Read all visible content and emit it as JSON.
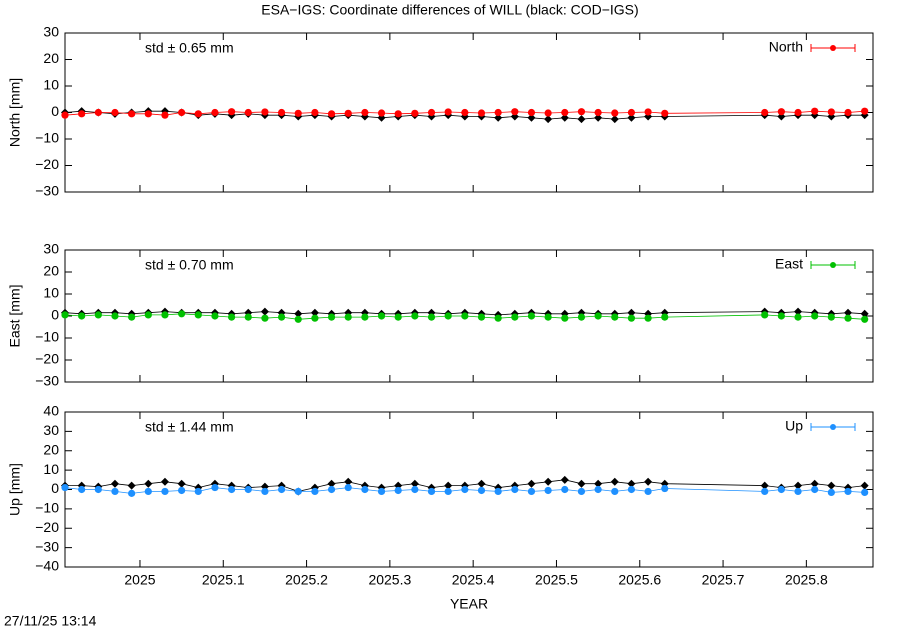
{
  "title": "ESA−IGS: Coordinate differences of WILL (black: COD−IGS)",
  "footer": "27/11/25 13:14",
  "chart_data": [
    {
      "type": "line",
      "ylabel": "North [mm]",
      "annotation": "std ± 0.65 mm",
      "annotation_color": "#ff0000",
      "legend": "upper right",
      "xlim": [
        2024.91,
        2025.88
      ],
      "xticks": [
        2025,
        2025.1,
        2025.2,
        2025.3,
        2025.4,
        2025.5,
        2025.6,
        2025.7,
        2025.8
      ],
      "ylim": [
        -30,
        30
      ],
      "yticks": [
        {
          "value": -30,
          "label": "−30"
        },
        {
          "value": -20,
          "label": "−20"
        },
        {
          "value": -10,
          "label": "−10"
        },
        0,
        10,
        20,
        30
      ],
      "x": [
        2024.91,
        2024.93,
        2024.95,
        2024.97,
        2024.99,
        2025.01,
        2025.03,
        2025.05,
        2025.07,
        2025.09,
        2025.11,
        2025.13,
        2025.15,
        2025.17,
        2025.19,
        2025.21,
        2025.23,
        2025.25,
        2025.27,
        2025.29,
        2025.31,
        2025.33,
        2025.35,
        2025.37,
        2025.39,
        2025.41,
        2025.43,
        2025.45,
        2025.47,
        2025.49,
        2025.51,
        2025.53,
        2025.55,
        2025.57,
        2025.59,
        2025.61,
        2025.63,
        2025.75,
        2025.77,
        2025.79,
        2025.81,
        2025.83,
        2025.85,
        2025.87
      ],
      "series": [
        {
          "color": "#000000",
          "marker": "diamond",
          "values": [
            0,
            0.5,
            0,
            -0.5,
            0,
            0.5,
            0.5,
            0,
            -1,
            -0.5,
            -1,
            -0.5,
            -1,
            -1,
            -1.5,
            -1,
            -1.5,
            -1,
            -1.5,
            -2,
            -1.5,
            -1,
            -1.5,
            -1,
            -1.5,
            -1.5,
            -2,
            -1.5,
            -2,
            -2.5,
            -2,
            -2.5,
            -2,
            -2.5,
            -2,
            -1.5,
            -1.5,
            -1,
            -1.5,
            -1,
            -1,
            -1.5,
            -1,
            -1
          ]
        },
        {
          "name": "North",
          "color": "#ff0000",
          "marker": "circle",
          "values": [
            -1,
            -0.5,
            0,
            0,
            -0.5,
            -0.5,
            -1,
            0,
            -0.5,
            0,
            0.3,
            0,
            0.2,
            0,
            -0.3,
            0,
            -0.5,
            -0.3,
            0,
            -0.2,
            -0.5,
            -0.3,
            0,
            0.2,
            0,
            -0.2,
            0,
            0.3,
            0,
            -0.2,
            0,
            0.3,
            0,
            -0.2,
            0,
            0.2,
            -0.3,
            0,
            0.3,
            0,
            0.5,
            0.2,
            0,
            0.5
          ]
        }
      ]
    },
    {
      "type": "line",
      "ylabel": "East [mm]",
      "annotation": "std ± 0.70 mm",
      "annotation_color": "#00c000",
      "legend": "upper right",
      "xlim": [
        2024.91,
        2025.88
      ],
      "xticks": [
        2025,
        2025.1,
        2025.2,
        2025.3,
        2025.4,
        2025.5,
        2025.6,
        2025.7,
        2025.8
      ],
      "ylim": [
        -30,
        30
      ],
      "yticks": [
        {
          "value": -30,
          "label": "−30"
        },
        {
          "value": -20,
          "label": "−20"
        },
        {
          "value": -10,
          "label": "−10"
        },
        0,
        10,
        20,
        30
      ],
      "x": [
        2024.91,
        2024.93,
        2024.95,
        2024.97,
        2024.99,
        2025.01,
        2025.03,
        2025.05,
        2025.07,
        2025.09,
        2025.11,
        2025.13,
        2025.15,
        2025.17,
        2025.19,
        2025.21,
        2025.23,
        2025.25,
        2025.27,
        2025.29,
        2025.31,
        2025.33,
        2025.35,
        2025.37,
        2025.39,
        2025.41,
        2025.43,
        2025.45,
        2025.47,
        2025.49,
        2025.51,
        2025.53,
        2025.55,
        2025.57,
        2025.59,
        2025.61,
        2025.63,
        2025.75,
        2025.77,
        2025.79,
        2025.81,
        2025.83,
        2025.85,
        2025.87
      ],
      "series": [
        {
          "color": "#000000",
          "marker": "diamond",
          "values": [
            1.5,
            1,
            1.5,
            1.5,
            1,
            1.5,
            2,
            1.5,
            1.5,
            1.5,
            1,
            1.5,
            2,
            1.5,
            1,
            1.5,
            1,
            1.5,
            1.5,
            1,
            1,
            1.5,
            1.5,
            1,
            1.5,
            1,
            0.5,
            1,
            1.5,
            1,
            1,
            1.5,
            1,
            1,
            1.5,
            1,
            1.5,
            2,
            1.5,
            2,
            1.5,
            1,
            1.5,
            1
          ]
        },
        {
          "name": "East",
          "color": "#00c000",
          "marker": "circle",
          "values": [
            0.5,
            0,
            0.5,
            0,
            -0.5,
            0.5,
            0.5,
            1,
            0.5,
            0,
            -0.5,
            -0.5,
            -1,
            -0.5,
            -1.5,
            -1,
            -0.5,
            -0.5,
            -0.5,
            0,
            -0.5,
            0,
            -0.5,
            0,
            0,
            -0.5,
            -1,
            -0.5,
            0,
            -0.5,
            -1,
            -0.5,
            0,
            -0.5,
            -1,
            -1,
            -0.5,
            0.5,
            0,
            -0.5,
            0,
            -0.5,
            -1,
            -1.5
          ]
        }
      ]
    },
    {
      "type": "line",
      "ylabel": "Up [mm]",
      "xlabel": "YEAR",
      "annotation": "std ± 1.44 mm",
      "annotation_color": "#1e90ff",
      "legend": "upper right",
      "xlim": [
        2024.91,
        2025.88
      ],
      "xticks": [
        2025,
        2025.1,
        2025.2,
        2025.3,
        2025.4,
        2025.5,
        2025.6,
        2025.7,
        2025.8
      ],
      "ylim": [
        -40,
        40
      ],
      "yticks": [
        {
          "value": -40,
          "label": "−40"
        },
        {
          "value": -30,
          "label": "−30"
        },
        {
          "value": -20,
          "label": "−20"
        },
        {
          "value": -10,
          "label": "−10"
        },
        0,
        10,
        20,
        30,
        40
      ],
      "x": [
        2024.91,
        2024.93,
        2024.95,
        2024.97,
        2024.99,
        2025.01,
        2025.03,
        2025.05,
        2025.07,
        2025.09,
        2025.11,
        2025.13,
        2025.15,
        2025.17,
        2025.19,
        2025.21,
        2025.23,
        2025.25,
        2025.27,
        2025.29,
        2025.31,
        2025.33,
        2025.35,
        2025.37,
        2025.39,
        2025.41,
        2025.43,
        2025.45,
        2025.47,
        2025.49,
        2025.51,
        2025.53,
        2025.55,
        2025.57,
        2025.59,
        2025.61,
        2025.63,
        2025.75,
        2025.77,
        2025.79,
        2025.81,
        2025.83,
        2025.85,
        2025.87
      ],
      "series": [
        {
          "color": "#000000",
          "marker": "diamond",
          "values": [
            2,
            2,
            1.5,
            3,
            2,
            3,
            4,
            3,
            1,
            3,
            2,
            1,
            1.5,
            2,
            -1,
            1,
            3,
            4,
            2,
            1,
            2,
            3,
            1,
            2,
            2,
            3,
            1,
            2,
            3,
            4,
            5,
            3,
            3,
            4,
            3,
            4,
            3,
            2,
            1,
            2,
            3,
            2,
            1,
            2
          ]
        },
        {
          "name": "Up",
          "color": "#1e90ff",
          "marker": "circle",
          "values": [
            1,
            0,
            0,
            -1,
            -2,
            -1,
            -1,
            -0.5,
            -1,
            1,
            0,
            0,
            -1,
            0,
            -1,
            -1,
            0,
            1,
            0,
            -1,
            -0.5,
            0,
            -1,
            -1,
            0,
            -0.5,
            -1,
            0,
            -1,
            -0.5,
            0,
            -1,
            0,
            -1,
            0,
            -1,
            0.5,
            -1,
            0,
            -1,
            0,
            -1.5,
            -1,
            -1.5
          ]
        }
      ]
    }
  ]
}
